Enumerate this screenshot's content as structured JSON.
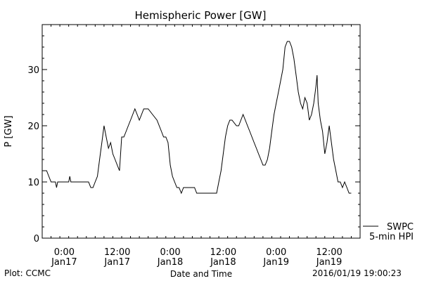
{
  "chart_data": {
    "type": "line",
    "title": "Hemispheric Power [GW]",
    "xlabel": "Date and Time",
    "ylabel": "P [GW]",
    "ylim": [
      0,
      38
    ],
    "xlim": [
      "2016-01-16 19:00",
      "2016-01-19 19:00"
    ],
    "yticks": [
      0,
      10,
      20,
      30
    ],
    "xticks": [
      {
        "time": "2016-01-17 00:00",
        "line1": "0:00",
        "line2": "Jan17"
      },
      {
        "time": "2016-01-17 12:00",
        "line1": "12:00",
        "line2": "Jan17"
      },
      {
        "time": "2016-01-18 00:00",
        "line1": "0:00",
        "line2": "Jan18"
      },
      {
        "time": "2016-01-18 12:00",
        "line1": "12:00",
        "line2": "Jan18"
      },
      {
        "time": "2016-01-19 00:00",
        "line1": "0:00",
        "line2": "Jan19"
      },
      {
        "time": "2016-01-19 12:00",
        "line1": "12:00",
        "line2": "Jan19"
      }
    ],
    "legend": {
      "placement": "bottom-right",
      "entries": [
        "SWPC",
        "5-min HPI"
      ]
    },
    "grid": false,
    "series": [
      {
        "name": "SWPC",
        "color": "#000000",
        "x": [
          "2016-01-16 19:00",
          "2016-01-16 20:00",
          "2016-01-16 20:30",
          "2016-01-16 21:00",
          "2016-01-16 21:30",
          "2016-01-16 22:00",
          "2016-01-16 22:15",
          "2016-01-16 22:30",
          "2016-01-17 00:00",
          "2016-01-17 01:00",
          "2016-01-17 01:15",
          "2016-01-17 01:30",
          "2016-01-17 05:30",
          "2016-01-17 06:00",
          "2016-01-17 06:30",
          "2016-01-17 07:00",
          "2016-01-17 07:30",
          "2016-01-17 08:00",
          "2016-01-17 08:30",
          "2016-01-17 09:00",
          "2016-01-17 09:30",
          "2016-01-17 10:00",
          "2016-01-17 10:30",
          "2016-01-17 11:00",
          "2016-01-17 11:30",
          "2016-01-17 12:00",
          "2016-01-17 12:30",
          "2016-01-17 13:00",
          "2016-01-17 13:30",
          "2016-01-17 14:00",
          "2016-01-17 14:30",
          "2016-01-17 15:00",
          "2016-01-17 15:30",
          "2016-01-17 16:00",
          "2016-01-17 16:30",
          "2016-01-17 17:00",
          "2016-01-17 18:00",
          "2016-01-17 19:00",
          "2016-01-17 20:00",
          "2016-01-17 21:00",
          "2016-01-17 22:00",
          "2016-01-17 22:30",
          "2016-01-17 23:00",
          "2016-01-17 23:30",
          "2016-01-18 00:00",
          "2016-01-18 00:30",
          "2016-01-18 01:00",
          "2016-01-18 01:30",
          "2016-01-18 02:00",
          "2016-01-18 02:30",
          "2016-01-18 03:00",
          "2016-01-18 05:00",
          "2016-01-18 05:30",
          "2016-01-18 06:00",
          "2016-01-18 09:00",
          "2016-01-18 10:00",
          "2016-01-18 10:30",
          "2016-01-18 11:00",
          "2016-01-18 11:30",
          "2016-01-18 12:00",
          "2016-01-18 12:30",
          "2016-01-18 13:00",
          "2016-01-18 13:30",
          "2016-01-18 14:00",
          "2016-01-18 15:00",
          "2016-01-18 15:30",
          "2016-01-18 16:00",
          "2016-01-18 16:30",
          "2016-01-18 17:00",
          "2016-01-18 17:30",
          "2016-01-18 18:00",
          "2016-01-18 18:30",
          "2016-01-18 19:00",
          "2016-01-18 19:30",
          "2016-01-18 20:00",
          "2016-01-18 20:30",
          "2016-01-18 21:00",
          "2016-01-18 21:30",
          "2016-01-18 22:00",
          "2016-01-18 22:30",
          "2016-01-18 23:00",
          "2016-01-18 23:30",
          "2016-01-19 00:00",
          "2016-01-19 00:30",
          "2016-01-19 01:00",
          "2016-01-19 01:30",
          "2016-01-19 02:00",
          "2016-01-19 02:30",
          "2016-01-19 03:00",
          "2016-01-19 03:30",
          "2016-01-19 04:00",
          "2016-01-19 04:30",
          "2016-01-19 05:00",
          "2016-01-19 05:30",
          "2016-01-19 06:00",
          "2016-01-19 06:30",
          "2016-01-19 07:00",
          "2016-01-19 07:30",
          "2016-01-19 08:00",
          "2016-01-19 08:30",
          "2016-01-19 09:00",
          "2016-01-19 09:15",
          "2016-01-19 09:30",
          "2016-01-19 10:00",
          "2016-01-19 10:30",
          "2016-01-19 11:00",
          "2016-01-19 11:30",
          "2016-01-19 12:00",
          "2016-01-19 12:30",
          "2016-01-19 13:00",
          "2016-01-19 13:30",
          "2016-01-19 14:00",
          "2016-01-19 14:30",
          "2016-01-19 15:00",
          "2016-01-19 15:30",
          "2016-01-19 16:00",
          "2016-01-19 16:30",
          "2016-01-19 17:00"
        ],
        "y": [
          12,
          12,
          11,
          10,
          10,
          10,
          9,
          10,
          10,
          10,
          11,
          10,
          10,
          9,
          9,
          10,
          11,
          14,
          17,
          20,
          18,
          16,
          17,
          15,
          14,
          13,
          12,
          18,
          18,
          19,
          20,
          21,
          22,
          23,
          22,
          21,
          23,
          23,
          22,
          21,
          19,
          18,
          18,
          17,
          13,
          11,
          10,
          9,
          9,
          8,
          9,
          9,
          9,
          8,
          8,
          8,
          8,
          10,
          12,
          15,
          18,
          20,
          21,
          21,
          20,
          20,
          21,
          22,
          21,
          20,
          19,
          18,
          17,
          16,
          15,
          14,
          13,
          13,
          14,
          16,
          19,
          22,
          24,
          26,
          28,
          30,
          34,
          35,
          35,
          34,
          32,
          29,
          26,
          24,
          23,
          25,
          24,
          21,
          22,
          24,
          27,
          29,
          24,
          21,
          19,
          15,
          17,
          20,
          17,
          14,
          12,
          10,
          10,
          9,
          10,
          9,
          8,
          8
        ]
      }
    ]
  },
  "footer": {
    "left": "Plot: CCMC",
    "right": "2016/01/19 19:00:23"
  }
}
